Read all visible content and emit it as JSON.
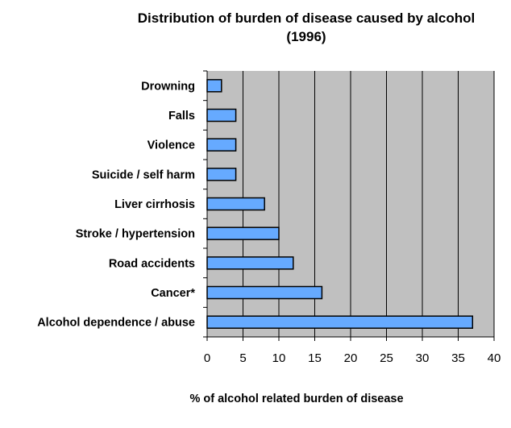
{
  "chart_data": {
    "type": "bar",
    "orientation": "horizontal",
    "title": [
      "Distribution of burden of disease caused by alcohol",
      "(1996)"
    ],
    "xlabel": "%  of alcohol related burden of disease",
    "ylabel": "",
    "categories": [
      "Drowning",
      "Falls",
      "Violence",
      "Suicide / self harm",
      "Liver cirrhosis",
      "Stroke / hypertension",
      "Road accidents",
      "Cancer*",
      "Alcohol dependence / abuse"
    ],
    "values": [
      2,
      4,
      4,
      4,
      8,
      10,
      12,
      16,
      37
    ],
    "xlim": [
      0,
      40
    ],
    "xticks": [
      "0",
      "5",
      "10",
      "15",
      "20",
      "25",
      "30",
      "35",
      "40"
    ],
    "grid": "vertical",
    "legend": "none",
    "colors": {
      "bar": "#66aaff",
      "plot_bg": "#c0c0c0",
      "outline": "#000000"
    }
  }
}
